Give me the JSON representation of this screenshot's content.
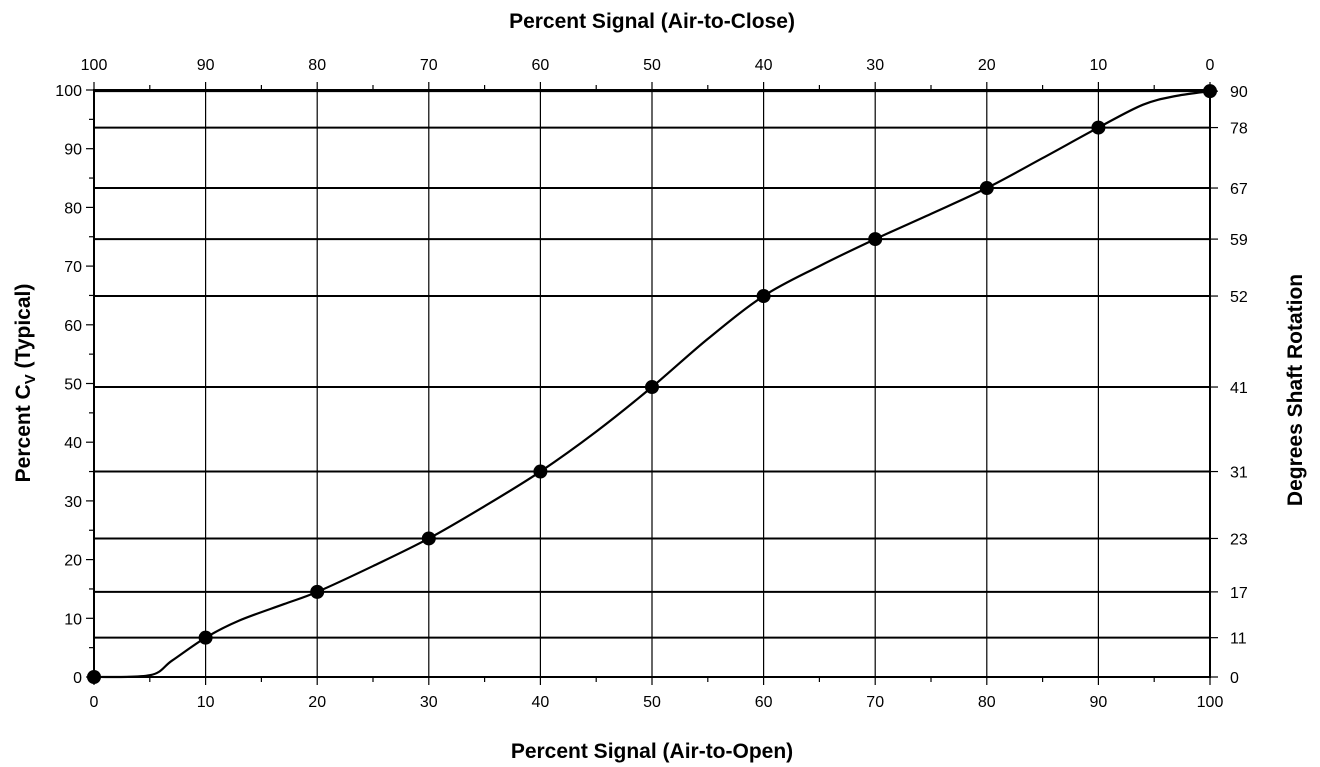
{
  "chart_data": {
    "type": "line",
    "title": "",
    "xlabel": "Percent Signal (Air-to-Open)",
    "x2label": "Percent Signal (Air-to-Close)",
    "ylabel_left": "Percent C",
    "ylabel_left_sub": "V",
    "ylabel_left_suffix": " (Typical)",
    "ylabel_right": "Degrees Shaft Rotation",
    "xlim": [
      0,
      100
    ],
    "ylim": [
      0,
      100
    ],
    "x_ticks": [
      0,
      10,
      20,
      30,
      40,
      50,
      60,
      70,
      80,
      90,
      100
    ],
    "x_tick_labels": [
      "0",
      "10",
      "20",
      "30",
      "40",
      "50",
      "60",
      "70",
      "80",
      "90",
      "100"
    ],
    "x2_tick_labels": [
      "100",
      "90",
      "80",
      "70",
      "60",
      "50",
      "40",
      "30",
      "20",
      "10",
      "0"
    ],
    "y_ticks": [
      0,
      10,
      20,
      30,
      40,
      50,
      60,
      70,
      80,
      90,
      100
    ],
    "y_tick_labels": [
      "0",
      "10",
      "20",
      "30",
      "40",
      "50",
      "60",
      "70",
      "80",
      "90",
      "100"
    ],
    "right_axis": [
      {
        "label": "0",
        "cv": 0
      },
      {
        "label": "11",
        "cv": 6.7
      },
      {
        "label": "17",
        "cv": 14.5
      },
      {
        "label": "23",
        "cv": 23.6
      },
      {
        "label": "31",
        "cv": 35.0
      },
      {
        "label": "41",
        "cv": 49.4
      },
      {
        "label": "52",
        "cv": 64.9
      },
      {
        "label": "59",
        "cv": 74.6
      },
      {
        "label": "67",
        "cv": 83.3
      },
      {
        "label": "78",
        "cv": 93.6
      },
      {
        "label": "90",
        "cv": 99.8
      }
    ],
    "series": [
      {
        "x": [
          0,
          10,
          20,
          30,
          40,
          50,
          60,
          70,
          80,
          90,
          100
        ],
        "y": [
          0,
          6.7,
          14.5,
          23.6,
          35.0,
          49.4,
          64.9,
          74.6,
          83.3,
          93.6,
          99.8
        ],
        "curve": [
          [
            0,
            0
          ],
          [
            5,
            0.3
          ],
          [
            7,
            2.8
          ],
          [
            10,
            6.7
          ],
          [
            13,
            9.6
          ],
          [
            17,
            12.4
          ],
          [
            20,
            14.5
          ],
          [
            25,
            18.9
          ],
          [
            30,
            23.6
          ],
          [
            35,
            29.1
          ],
          [
            40,
            35.0
          ],
          [
            45,
            41.8
          ],
          [
            50,
            49.4
          ],
          [
            55,
            57.6
          ],
          [
            60,
            64.9
          ],
          [
            65,
            70.0
          ],
          [
            70,
            74.6
          ],
          [
            75,
            78.9
          ],
          [
            80,
            83.3
          ],
          [
            85,
            88.4
          ],
          [
            90,
            93.6
          ],
          [
            94,
            97.5
          ],
          [
            97,
            99.0
          ],
          [
            100,
            99.8
          ]
        ]
      }
    ],
    "grid": true,
    "legend": "none"
  }
}
